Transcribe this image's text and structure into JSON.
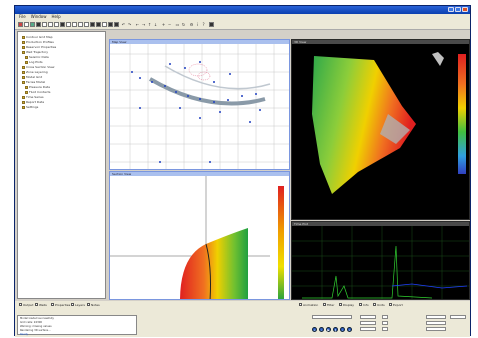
{
  "app": {
    "title": ""
  },
  "menu": {
    "items": [
      "File",
      "Window",
      "Help"
    ]
  },
  "tree": {
    "items": [
      {
        "label": "Contour Grid Map"
      },
      {
        "label": "Production Profiles"
      },
      {
        "label": "Reservoir Properties"
      },
      {
        "label": "Well Trajectory"
      },
      {
        "label": "Seismic Data"
      },
      {
        "label": "Log Plots"
      },
      {
        "label": "Cross Section View"
      },
      {
        "label": "Zone Layering"
      },
      {
        "label": "Model Grid"
      },
      {
        "label": "Facies Model"
      },
      {
        "label": "Pressure Data"
      },
      {
        "label": "Fluid Contacts"
      },
      {
        "label": "Time Series"
      },
      {
        "label": "Report Data"
      },
      {
        "label": "Settings"
      }
    ]
  },
  "panels": {
    "map": {
      "title": "Map View"
    },
    "view3d": {
      "title": "3D View"
    },
    "section": {
      "title": "Section View"
    },
    "plot": {
      "title": "Time Plot"
    }
  },
  "bottom": {
    "tabs": [
      "Output",
      "Wells",
      "Properties",
      "Layers",
      "Notes"
    ],
    "log": [
      "Model loaded successfully",
      "Grid cells: 24300",
      "Warning: missing values",
      "Rendering 3D surface...",
      "Ready"
    ],
    "right_tabs": [
      "Animation",
      "Filter",
      "Display",
      "Info",
      "Units",
      "Export"
    ]
  },
  "colors": {
    "accent": "#2a63d8",
    "surface_high": "#e02020",
    "surface_mid": "#f0d000",
    "surface_low": "#20a040"
  }
}
